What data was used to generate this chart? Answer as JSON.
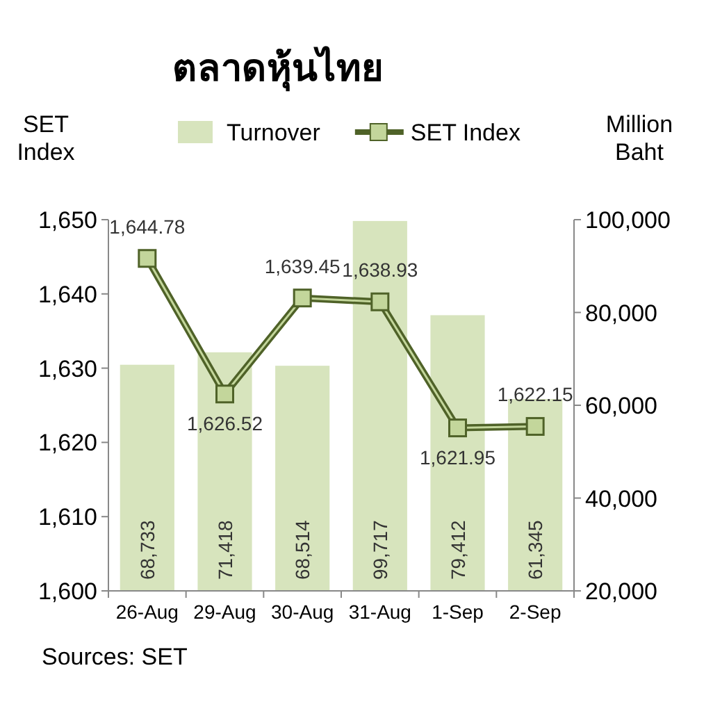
{
  "chart_data": {
    "type": "bar",
    "title": "ตลาดหุ้นไทย",
    "ylabel": "SET Index",
    "y2label": "Million Baht",
    "categories": [
      "26-Aug",
      "29-Aug",
      "30-Aug",
      "31-Aug",
      "1-Sep",
      "2-Sep"
    ],
    "series": [
      {
        "name": "Turnover",
        "axis": "y2",
        "color": "#d7e4bd",
        "values": [
          68733,
          71418,
          68514,
          99717,
          79412,
          61345
        ],
        "value_labels": [
          "68,733",
          "71,418",
          "68,514",
          "99,717",
          "79,412",
          "61,345"
        ]
      },
      {
        "name": "SET Index",
        "type": "line",
        "axis": "y",
        "color": "#4f6228",
        "marker": "square",
        "values": [
          1644.78,
          1626.52,
          1639.45,
          1638.93,
          1621.95,
          1622.15
        ],
        "value_labels": [
          "1,644.78",
          "1,626.52",
          "1,639.45",
          "1,638.93",
          "1,621.95",
          "1,622.15"
        ]
      }
    ],
    "ylim": [
      1600,
      1650
    ],
    "yticks": [
      {
        "value": 1600,
        "label": "1,600"
      },
      {
        "value": 1610,
        "label": "1,610"
      },
      {
        "value": 1620,
        "label": "1,620"
      },
      {
        "value": 1630,
        "label": "1,630"
      },
      {
        "value": 1640,
        "label": "1,640"
      },
      {
        "value": 1650,
        "label": "1,650"
      }
    ],
    "y2lim": [
      20000,
      100000
    ],
    "y2ticks": [
      {
        "value": 20000,
        "label": "20,000"
      },
      {
        "value": 40000,
        "label": "40,000"
      },
      {
        "value": 60000,
        "label": "60,000"
      },
      {
        "value": 80000,
        "label": "80,000"
      },
      {
        "value": 100000,
        "label": "100,000"
      }
    ],
    "legend": "top",
    "grid": false,
    "annotations": [
      "Sources: SET"
    ]
  }
}
